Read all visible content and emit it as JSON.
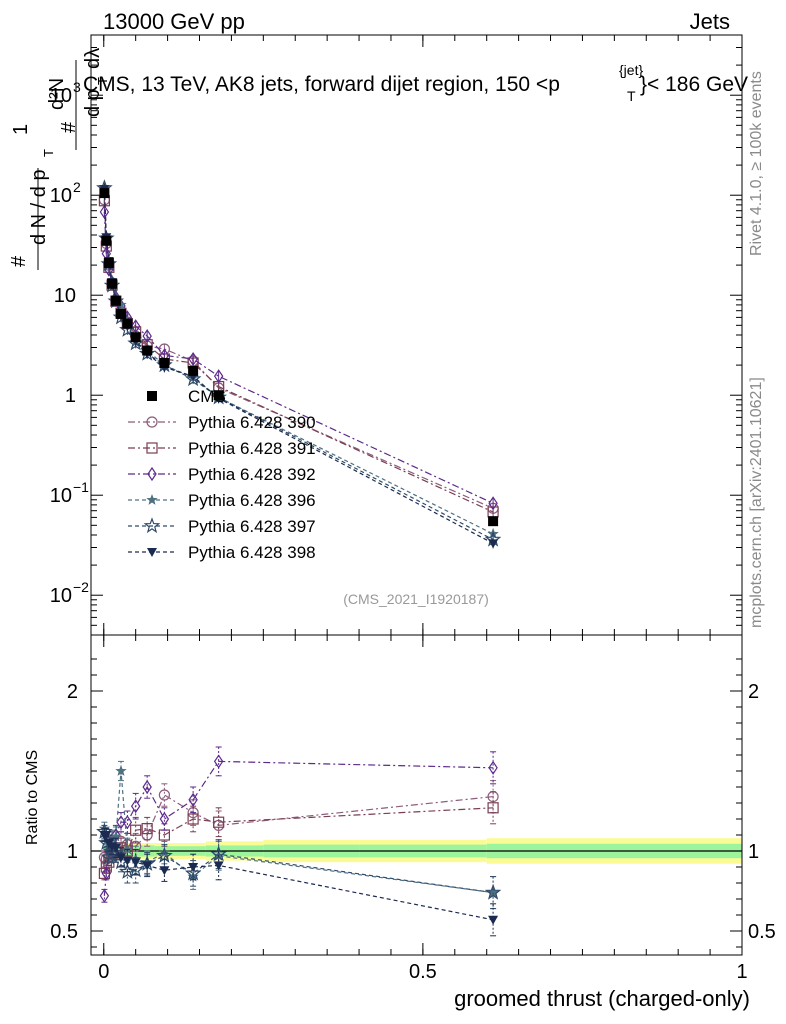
{
  "header": {
    "left": "13000 GeV pp",
    "right": "Jets"
  },
  "title": {
    "main": "CMS, 13 TeV, AK8 jets, forward dijet region, 150 <p",
    "sup": "{jet}",
    "sub": "T",
    "tail": "}< 186 GeV"
  },
  "side": {
    "rivet": "Rivet 4.1.0, ≥ 100k events",
    "mcplots": "mcplots.cern.ch [arXiv:2401.10621]"
  },
  "watermark": "(CMS_2021_I1920187)",
  "ylabel": {
    "hash1": "#",
    "d2N": "d²N",
    "dpt": "d p",
    "T": "T",
    "dlambda": "dλ",
    "one": "1",
    "dN": "d N / d p"
  },
  "ratio_ylabel": "Ratio to CMS",
  "xlabel": "groomed thrust (charged-only)",
  "colors": {
    "cms": "#000000",
    "p390": "#8c5c7c",
    "p391": "#7a3e52",
    "p392": "#5c2a8c",
    "p396": "#4e7080",
    "p397": "#2e4a6a",
    "p398": "#1a2a50",
    "band_green": "#9cf59c",
    "band_yellow": "#fbfb96"
  },
  "chart_data": {
    "type": "line",
    "xlabel": "groomed thrust (charged-only)",
    "xlim": [
      -0.02,
      1.0
    ],
    "main": {
      "yscale": "log",
      "ylim": [
        0.004,
        4000
      ],
      "yticks": [
        {
          "v": 1000,
          "base": "10",
          "exp": "3"
        },
        {
          "v": 100,
          "base": "10",
          "exp": "2"
        },
        {
          "v": 10,
          "base": "10",
          "exp": ""
        },
        {
          "v": 1,
          "base": "1",
          "exp": ""
        },
        {
          "v": 0.1,
          "base": "10",
          "exp": "−1"
        },
        {
          "v": 0.01,
          "base": "10",
          "exp": "−2"
        }
      ]
    },
    "ratio": {
      "ylim": [
        0.35,
        2.35
      ],
      "yticks": [
        0.5,
        1,
        2
      ],
      "ytick_labels": [
        "0.5",
        "1",
        "2"
      ],
      "band_x": [
        0.0,
        0.08,
        0.16,
        0.25,
        0.4,
        0.6,
        1.0
      ],
      "band_inner": [
        0.035,
        0.03,
        0.035,
        0.04,
        0.04,
        0.045
      ],
      "band_outer": [
        0.05,
        0.05,
        0.06,
        0.07,
        0.07,
        0.08
      ]
    },
    "xticks": [
      0,
      0.5,
      1
    ],
    "xtick_labels": [
      "0",
      "0.5",
      "1"
    ],
    "x": [
      0.001,
      0.004,
      0.008,
      0.013,
      0.019,
      0.027,
      0.037,
      0.05,
      0.068,
      0.095,
      0.14,
      0.18,
      0.61
    ],
    "series": [
      {
        "name": "CMS",
        "key": "cms",
        "marker": "square",
        "values": [
          105,
          35,
          21,
          13,
          8.8,
          6.5,
          5.2,
          3.8,
          2.8,
          2.1,
          1.75,
          1.0,
          0.055
        ],
        "ratio": null
      },
      {
        "name": "Pythia 6.428 390",
        "key": "p390",
        "marker": "circle",
        "values": [
          90,
          33,
          20,
          13.2,
          8.9,
          6.9,
          5.4,
          3.9,
          3.1,
          2.9,
          2.2,
          1.18,
          0.074
        ],
        "ratio": [
          0.96,
          0.95,
          0.96,
          1.02,
          1.01,
          1.06,
          1.04,
          1.03,
          1.1,
          1.35,
          1.24,
          1.16,
          1.34
        ],
        "dash": "7,3,2,3"
      },
      {
        "name": "Pythia 6.428 391",
        "key": "p391",
        "marker": "square-open",
        "values": [
          88,
          31,
          19,
          12.6,
          8.7,
          6.6,
          5.2,
          4.3,
          3.2,
          2.3,
          2.1,
          1.22,
          0.068
        ],
        "ratio": [
          0.86,
          0.9,
          0.93,
          0.98,
          0.99,
          1.02,
          1.0,
          1.13,
          1.14,
          1.1,
          1.2,
          1.18,
          1.27
        ],
        "dash": "7,3,2,3"
      },
      {
        "name": "Pythia 6.428 392",
        "key": "p392",
        "marker": "diamond-open",
        "values": [
          68,
          26,
          18,
          13.5,
          9.5,
          7.8,
          6.0,
          4.9,
          3.9,
          2.5,
          2.3,
          1.55,
          0.083
        ],
        "ratio": [
          0.72,
          0.86,
          1.0,
          1.07,
          1.1,
          1.18,
          1.18,
          1.28,
          1.4,
          1.2,
          1.32,
          1.56,
          1.52
        ],
        "dash": "7,3,2,3"
      },
      {
        "name": "Pythia 6.428 396",
        "key": "p396",
        "marker": "star-filled",
        "values": [
          115,
          38,
          21.5,
          14,
          9.5,
          8.0,
          5.4,
          3.4,
          2.8,
          2.0,
          1.5,
          0.95,
          0.041
        ],
        "ratio": [
          1.14,
          1.06,
          1.02,
          1.08,
          1.09,
          1.5,
          1.01,
          0.95,
          0.93,
          0.99,
          0.84,
          0.97,
          0.74
        ],
        "dash": "4,3"
      },
      {
        "name": "Pythia 6.428 397",
        "key": "p397",
        "marker": "star-open",
        "values": [
          118,
          37,
          20.5,
          12.5,
          8.7,
          6.0,
          4.5,
          3.3,
          2.6,
          2.0,
          1.45,
          0.95,
          0.036
        ],
        "ratio": [
          1.12,
          1.05,
          0.96,
          0.98,
          0.99,
          0.93,
          0.87,
          0.88,
          0.92,
          0.97,
          0.86,
          0.98,
          0.74
        ],
        "dash": "4,3"
      },
      {
        "name": "Pythia 6.428 398",
        "key": "p398",
        "marker": "triangle-down",
        "values": [
          115,
          38,
          22,
          13.5,
          9.0,
          6.2,
          4.9,
          3.5,
          2.6,
          1.9,
          1.55,
          0.93,
          0.033
        ],
        "ratio": [
          1.1,
          1.1,
          1.05,
          1.03,
          1.02,
          0.96,
          0.94,
          0.93,
          0.91,
          0.88,
          0.9,
          0.91,
          0.57
        ],
        "dash": "4,3"
      }
    ],
    "ratio_errors": [
      0.04,
      0.04,
      0.05,
      0.05,
      0.06,
      0.06,
      0.07,
      0.08,
      0.07,
      0.07,
      0.08,
      0.09,
      0.1
    ],
    "legend": "left-center"
  }
}
